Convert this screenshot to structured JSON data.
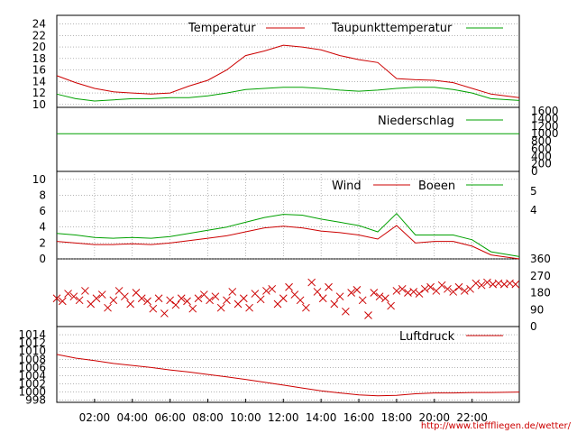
{
  "source_text": "http://www.tiefffliegen.de/wetter/",
  "colors": {
    "red": "#cc0000",
    "green": "#00a000"
  },
  "chart_data": [
    {
      "type": "line",
      "x_tick_labels": [
        "02:00",
        "04:00",
        "06:00",
        "08:00",
        "10:00",
        "12:00",
        "14:00",
        "16:00",
        "18:00",
        "20:00",
        "22:00"
      ],
      "x_ticks": [
        2,
        4,
        6,
        8,
        10,
        12,
        14,
        16,
        18,
        20,
        22
      ],
      "xlim": [
        0,
        24.5
      ],
      "ylim": [
        9.5,
        25.5
      ],
      "y_ticks": [
        10,
        12,
        14,
        16,
        18,
        20,
        22,
        24
      ],
      "series": [
        {
          "name": "Temperatur",
          "color": "red",
          "x": [
            0,
            1,
            2,
            3,
            4,
            5,
            6,
            7,
            8,
            9,
            10,
            11,
            12,
            13,
            14,
            15,
            16,
            17,
            18,
            19,
            20,
            21,
            22,
            23,
            24.5
          ],
          "values": [
            15,
            13.8,
            12.8,
            12.2,
            12,
            11.8,
            12,
            13.2,
            14.2,
            16,
            18.5,
            19.3,
            20.3,
            20,
            19.5,
            18.5,
            17.8,
            17.3,
            14.5,
            14.3,
            14.2,
            13.8,
            12.8,
            11.8,
            11.2
          ]
        },
        {
          "name": "Taupunkttemperatur",
          "color": "green",
          "x": [
            0,
            1,
            2,
            3,
            4,
            5,
            6,
            7,
            8,
            9,
            10,
            11,
            12,
            13,
            14,
            15,
            16,
            17,
            18,
            19,
            20,
            21,
            22,
            23,
            24.5
          ],
          "values": [
            11.8,
            11,
            10.6,
            10.8,
            11,
            11,
            11.2,
            11.2,
            11.5,
            12,
            12.6,
            12.8,
            13,
            13,
            12.8,
            12.5,
            12.3,
            12.5,
            12.8,
            13,
            13,
            12.6,
            12,
            11,
            10.7
          ]
        }
      ]
    },
    {
      "type": "line",
      "ylim": [
        0,
        1700
      ],
      "y_ticks": [
        0,
        200,
        400,
        600,
        800,
        1000,
        1200,
        1400,
        1600
      ],
      "series": [
        {
          "name": "Niederschlag",
          "color": "green",
          "x": [
            0,
            24.5
          ],
          "values": [
            1000,
            1000
          ]
        }
      ]
    },
    {
      "type": "line",
      "ylim": [
        0,
        11
      ],
      "y_ticks": [
        0,
        2,
        4,
        6,
        8,
        10
      ],
      "right_tick_labels": [
        "4",
        "5"
      ],
      "series": [
        {
          "name": "Wind",
          "color": "red",
          "x": [
            0,
            1,
            2,
            3,
            4,
            5,
            6,
            7,
            8,
            9,
            10,
            11,
            12,
            13,
            14,
            15,
            16,
            17,
            18,
            19,
            20,
            21,
            22,
            23,
            24.5
          ],
          "values": [
            2.2,
            2,
            1.8,
            1.8,
            1.9,
            1.8,
            2,
            2.3,
            2.6,
            2.9,
            3.4,
            3.9,
            4.1,
            3.9,
            3.5,
            3.3,
            3,
            2.5,
            4.2,
            2,
            2.2,
            2.2,
            1.6,
            0.5,
            0
          ]
        },
        {
          "name": "Boeen",
          "color": "green",
          "x": [
            0,
            1,
            2,
            3,
            4,
            5,
            6,
            7,
            8,
            9,
            10,
            11,
            12,
            13,
            14,
            15,
            16,
            17,
            18,
            19,
            20,
            21,
            22,
            23,
            24.5
          ],
          "values": [
            3.2,
            3,
            2.7,
            2.6,
            2.7,
            2.6,
            2.8,
            3.2,
            3.6,
            4,
            4.6,
            5.2,
            5.6,
            5.5,
            5,
            4.6,
            4.2,
            3.4,
            5.7,
            3,
            3,
            3,
            2.4,
            0.9,
            0.3
          ]
        }
      ]
    },
    {
      "type": "scatter",
      "ylim": [
        0,
        360
      ],
      "right_tick_labels": [
        "360",
        "270",
        "180",
        "90",
        "0"
      ],
      "right_ticks": [
        360,
        270,
        180,
        90,
        0
      ],
      "series": [
        {
          "name": "",
          "color": "red",
          "x": [
            0,
            0.3,
            0.6,
            0.9,
            1.2,
            1.5,
            1.8,
            2.1,
            2.4,
            2.7,
            3,
            3.3,
            3.6,
            3.9,
            4.2,
            4.5,
            4.8,
            5.1,
            5.4,
            5.7,
            6,
            6.3,
            6.6,
            6.9,
            7.2,
            7.5,
            7.8,
            8.1,
            8.4,
            8.7,
            9,
            9.3,
            9.6,
            9.9,
            10.2,
            10.5,
            10.8,
            11.1,
            11.4,
            11.7,
            12,
            12.3,
            12.6,
            12.9,
            13.2,
            13.5,
            13.8,
            14.1,
            14.4,
            14.7,
            15,
            15.3,
            15.6,
            15.9,
            16.2,
            16.5,
            16.8,
            17.1,
            17.4,
            17.7,
            18,
            18.3,
            18.6,
            18.9,
            19.2,
            19.5,
            19.8,
            20.1,
            20.4,
            20.7,
            21,
            21.3,
            21.6,
            21.9,
            22.2,
            22.5,
            22.8,
            23.1,
            23.4,
            23.7,
            24,
            24.3
          ],
          "values": [
            150,
            135,
            175,
            160,
            140,
            190,
            120,
            150,
            170,
            100,
            140,
            190,
            160,
            120,
            180,
            150,
            135,
            95,
            150,
            70,
            140,
            115,
            150,
            135,
            95,
            150,
            170,
            140,
            160,
            100,
            140,
            185,
            120,
            150,
            100,
            175,
            145,
            190,
            200,
            120,
            150,
            210,
            170,
            140,
            100,
            235,
            185,
            150,
            210,
            120,
            160,
            80,
            180,
            195,
            140,
            60,
            180,
            160,
            150,
            110,
            190,
            200,
            180,
            185,
            175,
            200,
            210,
            190,
            220,
            200,
            185,
            210,
            190,
            200,
            230,
            220,
            235,
            225,
            230,
            225,
            230,
            225
          ]
        }
      ]
    },
    {
      "type": "line",
      "ylim": [
        997.5,
        1016
      ],
      "y_ticks": [
        998,
        1000,
        1002,
        1004,
        1006,
        1008,
        1010,
        1012,
        1014
      ],
      "series": [
        {
          "name": "Luftdruck",
          "color": "red",
          "x": [
            0,
            1,
            2,
            3,
            4,
            5,
            6,
            7,
            8,
            9,
            10,
            11,
            12,
            13,
            14,
            15,
            16,
            17,
            18,
            19,
            20,
            21,
            22,
            23,
            24.5
          ],
          "values": [
            1009.2,
            1008.3,
            1007.7,
            1007,
            1006.5,
            1006,
            1005.4,
            1004.9,
            1004.3,
            1003.7,
            1003.1,
            1002.4,
            1001.7,
            1001,
            1000.3,
            999.8,
            999.3,
            999.1,
            999.2,
            999.6,
            999.8,
            999.8,
            999.9,
            999.9,
            1000
          ]
        }
      ]
    }
  ]
}
